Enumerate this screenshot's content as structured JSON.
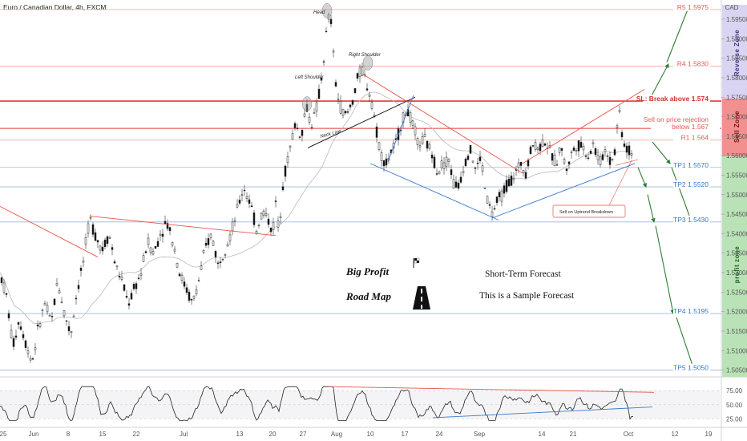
{
  "header": {
    "title": "Euro / Canadian Dollar, 4h, FXCM",
    "currency": "CAD"
  },
  "chart_data": {
    "type": "line",
    "title": "Euro / Canadian Dollar, 4h, FXCM",
    "ylim": [
      1.5045,
      1.5985
    ],
    "y_ticks": [
      1.505,
      1.51,
      1.515,
      1.52,
      1.525,
      1.53,
      1.535,
      1.54,
      1.545,
      1.55,
      1.555,
      1.56,
      1.565,
      1.57,
      1.575,
      1.58,
      1.585,
      1.59,
      1.595
    ],
    "y_tick_labels": [
      "1.50500",
      "1.51000",
      "1.51500",
      "1.52000",
      "1.52500",
      "1.53000",
      "1.53500",
      "1.54000",
      "1.54500",
      "1.55000",
      "1.55500",
      "1.56000",
      "1.56500",
      "1.57000",
      "1.57500",
      "1.58000",
      "1.58500",
      "1.59000",
      "1.59500"
    ],
    "x_tick_labels": [
      "25",
      "Jun",
      "8",
      "15",
      "22",
      "Jul",
      "13",
      "20",
      "27",
      "Aug",
      "10",
      "17",
      "24",
      "Sep",
      "14",
      "21",
      "Oct",
      "12",
      "19"
    ],
    "price_series": [
      [
        0,
        1.53
      ],
      [
        8,
        1.524
      ],
      [
        16,
        1.511
      ],
      [
        24,
        1.518
      ],
      [
        32,
        1.512
      ],
      [
        40,
        1.507
      ],
      [
        48,
        1.516
      ],
      [
        56,
        1.522
      ],
      [
        64,
        1.517
      ],
      [
        72,
        1.528
      ],
      [
        80,
        1.52
      ],
      [
        88,
        1.514
      ],
      [
        96,
        1.525
      ],
      [
        104,
        1.533
      ],
      [
        112,
        1.544
      ],
      [
        120,
        1.539
      ],
      [
        128,
        1.536
      ],
      [
        136,
        1.54
      ],
      [
        144,
        1.532
      ],
      [
        152,
        1.528
      ],
      [
        160,
        1.522
      ],
      [
        168,
        1.526
      ],
      [
        176,
        1.53
      ],
      [
        184,
        1.538
      ],
      [
        192,
        1.535
      ],
      [
        200,
        1.54
      ],
      [
        208,
        1.543
      ],
      [
        216,
        1.538
      ],
      [
        224,
        1.53
      ],
      [
        232,
        1.526
      ],
      [
        240,
        1.522
      ],
      [
        248,
        1.528
      ],
      [
        256,
        1.536
      ],
      [
        264,
        1.54
      ],
      [
        272,
        1.532
      ],
      [
        280,
        1.536
      ],
      [
        288,
        1.54
      ],
      [
        296,
        1.546
      ],
      [
        304,
        1.552
      ],
      [
        312,
        1.548
      ],
      [
        320,
        1.541
      ],
      [
        328,
        1.546
      ],
      [
        336,
        1.543
      ],
      [
        340,
        1.54
      ],
      [
        344,
        1.548
      ],
      [
        348,
        1.54
      ],
      [
        352,
        1.552
      ],
      [
        360,
        1.56
      ],
      [
        368,
        1.568
      ],
      [
        376,
        1.565
      ],
      [
        382,
        1.573
      ],
      [
        388,
        1.568
      ],
      [
        394,
        1.571
      ],
      [
        400,
        1.578
      ],
      [
        404,
        1.585
      ],
      [
        408,
        1.593
      ],
      [
        412,
        1.597
      ],
      [
        416,
        1.586
      ],
      [
        420,
        1.576
      ],
      [
        426,
        1.572
      ],
      [
        432,
        1.57
      ],
      [
        440,
        1.574
      ],
      [
        446,
        1.58
      ],
      [
        452,
        1.582
      ],
      [
        458,
        1.578
      ],
      [
        464,
        1.574
      ],
      [
        470,
        1.566
      ],
      [
        476,
        1.56
      ],
      [
        482,
        1.558
      ],
      [
        488,
        1.561
      ],
      [
        494,
        1.563
      ],
      [
        500,
        1.568
      ],
      [
        508,
        1.572
      ],
      [
        516,
        1.567
      ],
      [
        522,
        1.563
      ],
      [
        530,
        1.564
      ],
      [
        538,
        1.561
      ],
      [
        546,
        1.556
      ],
      [
        552,
        1.558
      ],
      [
        560,
        1.559
      ],
      [
        566,
        1.553
      ],
      [
        572,
        1.552
      ],
      [
        578,
        1.557
      ],
      [
        586,
        1.562
      ],
      [
        594,
        1.556
      ],
      [
        600,
        1.56
      ],
      [
        606,
        1.55
      ],
      [
        614,
        1.545
      ],
      [
        620,
        1.548
      ],
      [
        626,
        1.55
      ],
      [
        634,
        1.553
      ],
      [
        642,
        1.555
      ],
      [
        650,
        1.558
      ],
      [
        656,
        1.556
      ],
      [
        664,
        1.563
      ],
      [
        672,
        1.562
      ],
      [
        680,
        1.564
      ],
      [
        688,
        1.56
      ],
      [
        694,
        1.558
      ],
      [
        700,
        1.563
      ],
      [
        706,
        1.556
      ],
      [
        712,
        1.56
      ],
      [
        720,
        1.563
      ],
      [
        728,
        1.562
      ],
      [
        734,
        1.56
      ],
      [
        740,
        1.563
      ],
      [
        748,
        1.558
      ],
      [
        756,
        1.562
      ],
      [
        762,
        1.558
      ],
      [
        768,
        1.562
      ],
      [
        772,
        1.573
      ],
      [
        776,
        1.566
      ],
      [
        780,
        1.562
      ],
      [
        786,
        1.561
      ],
      [
        790,
        1.561
      ]
    ],
    "levels": [
      {
        "name": "R5",
        "label": "R5 1.5975",
        "value": 1.5975
      },
      {
        "name": "R4",
        "label": "R4 1.5830",
        "value": 1.583
      },
      {
        "name": "SL",
        "label": "SL: Break above 1.574",
        "value": 1.574
      },
      {
        "name": "Sell",
        "label1": "Sell on price rejection",
        "label2": "below 1.567",
        "value": 1.567
      },
      {
        "name": "R1",
        "label": "R1 1.564",
        "value": 1.564
      },
      {
        "name": "TP1",
        "label": "TP1 1.5570",
        "value": 1.557
      },
      {
        "name": "TP2",
        "label": "TP2 1.5520",
        "value": 1.552
      },
      {
        "name": "TP3",
        "label": "TP3 1.5430",
        "value": 1.543
      },
      {
        "name": "TP4",
        "label": "TP4 1.5195",
        "value": 1.5195
      },
      {
        "name": "TP5",
        "label": "TP5 1.5050",
        "value": 1.505
      }
    ],
    "zones": {
      "reverse": "Reverse Zone",
      "sell": "Sell Zone",
      "profit": "profit zone"
    },
    "annotations": {
      "head": "Head",
      "left_shoulder": "Left Shoulder",
      "right_shoulder": "Right Shoulder",
      "neck_line": "Neck Line",
      "uptrend_breakdown": "Sell on Uptrend Breakdown"
    },
    "oscillator": {
      "ticks": [
        25,
        50,
        75
      ],
      "tick_labels": [
        "25.00",
        "50.00",
        "75.00"
      ],
      "ylim": [
        17,
        88
      ]
    }
  },
  "overlay": {
    "big_profit": "Big Profit",
    "road_map": "Road Map",
    "short_term": "Short-Term Forecast",
    "sample": "This is a Sample Forecast"
  },
  "colors": {
    "candle_up": "#2b2b2b",
    "candle_down": "#111111",
    "resistance": "#e8534a",
    "support": "#3a78c9",
    "forecast": "#2e7d32",
    "zone_reverse": "#c8c2ea",
    "zone_sell": "#f07b7b",
    "zone_profit": "#a9dca9"
  }
}
